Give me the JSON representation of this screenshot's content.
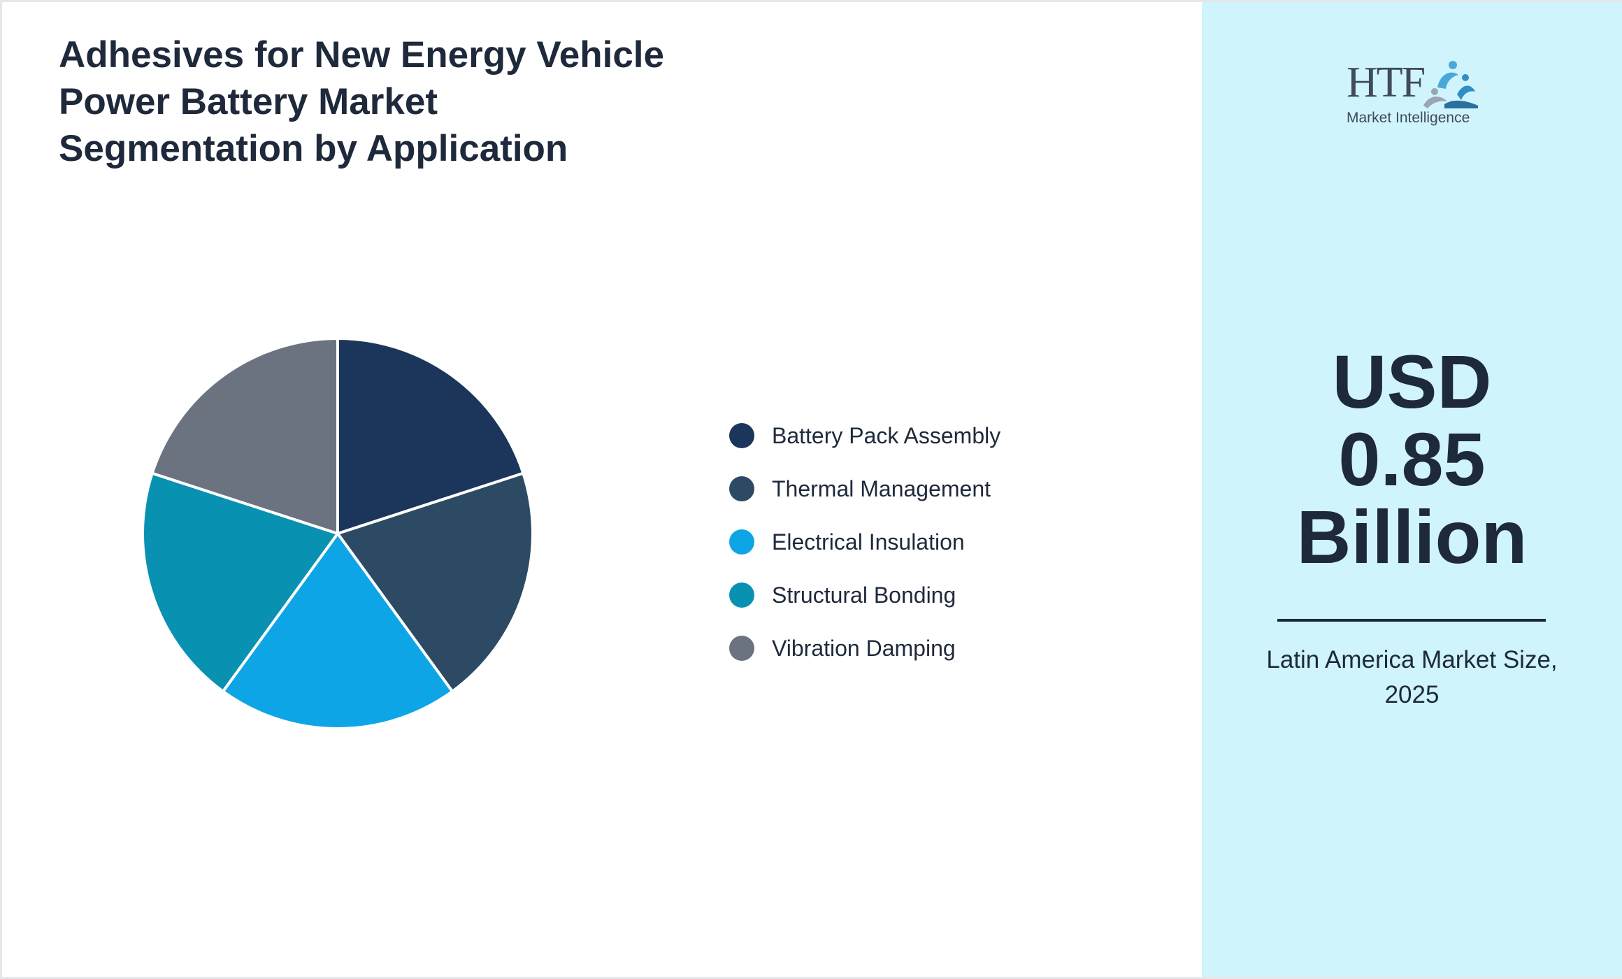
{
  "title_lines": [
    "Adhesives for New Energy Vehicle",
    "Power Battery Market",
    "Segmentation by Application"
  ],
  "chart_data": {
    "type": "pie",
    "title": "Adhesives for New Energy Vehicle Power Battery Market Segmentation by Application",
    "categories": [
      "Battery Pack Assembly",
      "Thermal Management",
      "Electrical Insulation",
      "Structural Bonding",
      "Vibration Damping"
    ],
    "values": [
      20,
      20,
      20,
      20,
      20
    ],
    "colors": [
      "#1b355b",
      "#2c4a63",
      "#0ea5e6",
      "#0991b2",
      "#6b7280"
    ],
    "legend_position": "right",
    "grid": false
  },
  "logo": {
    "brand": "HTF",
    "tagline": "Market Intelligence"
  },
  "highlight": {
    "value_lines": [
      "USD",
      "0.85",
      "Billion"
    ],
    "caption_lines": [
      "Latin America Market Size,",
      "2025"
    ]
  },
  "colors": {
    "panel_bg": "#cff4fc",
    "text": "#1e293b"
  }
}
